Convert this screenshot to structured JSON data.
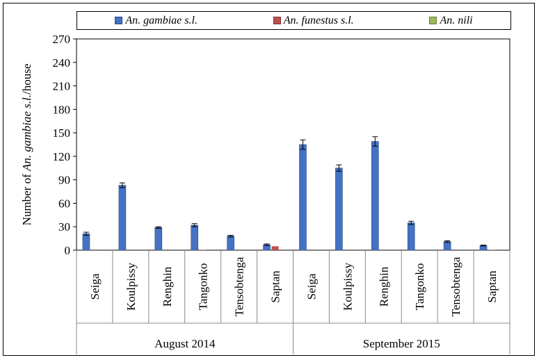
{
  "chart_data": {
    "type": "bar",
    "ylabel_prefix": "Number of ",
    "ylabel_italic": "An. gambiae s.l.",
    "ylabel_suffix": "/house",
    "ylim": [
      0,
      270
    ],
    "yticks": [
      0,
      30,
      60,
      90,
      120,
      150,
      180,
      210,
      240,
      270
    ],
    "grid": false,
    "legend_position": "top",
    "groups": [
      {
        "label": "August 2014",
        "categories": [
          "Seiga",
          "Koulpissy",
          "Renghin",
          "Tangonko",
          "Tensobtenga",
          "Saptan"
        ]
      },
      {
        "label": "September 2015",
        "categories": [
          "Seiga",
          "Koulpissy",
          "Renghin",
          "Tangonko",
          "Tensobtenga",
          "Saptan"
        ]
      }
    ],
    "series": [
      {
        "name": "An. gambiae s.l.",
        "color": "#4472C4",
        "values": [
          21,
          83,
          29,
          32,
          18,
          7,
          135,
          105,
          139,
          35,
          11,
          6
        ],
        "errors": [
          2,
          3,
          1,
          2,
          1,
          1,
          6,
          4,
          6,
          2,
          1,
          0.5
        ]
      },
      {
        "name": "An. funestus s.l.",
        "color": "#C0504D",
        "values": [
          0,
          0,
          0,
          0.3,
          0,
          5,
          0,
          0,
          0,
          0,
          0,
          0.3
        ],
        "errors": [
          0,
          0,
          0,
          0,
          0,
          0,
          0,
          0,
          0,
          0,
          0,
          0
        ]
      },
      {
        "name": "An. nili",
        "color": "#9BBB59",
        "values": [
          0,
          0,
          0,
          0,
          0,
          0,
          0,
          0,
          0,
          0,
          0,
          0
        ],
        "errors": [
          0,
          0,
          0,
          0,
          0,
          0,
          0,
          0,
          0,
          0,
          0,
          0
        ]
      }
    ]
  }
}
